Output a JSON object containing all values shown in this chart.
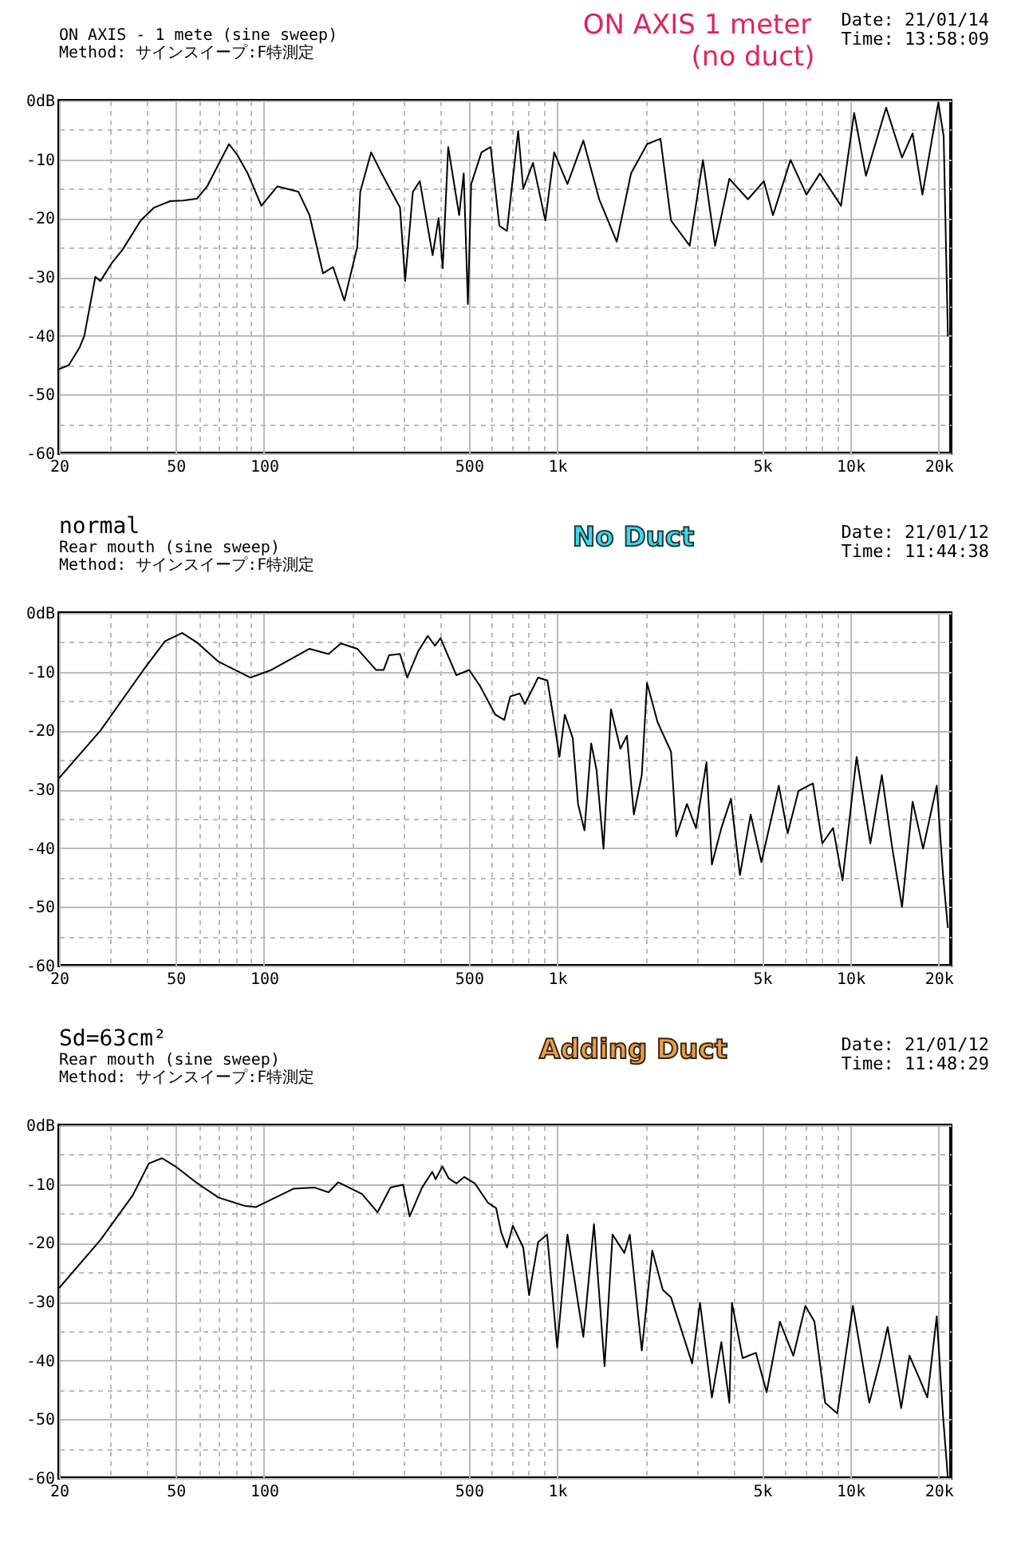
{
  "chart_data": [
    {
      "type": "line",
      "subtitle": "ON AXIS - 1 mete (sine sweep)\nMethod: サインスイープ:F特測定",
      "annotations": [
        "ON AXIS 1 meter\n(no duct)",
        "Date: 21/01/14",
        "Time: 13:58:09"
      ],
      "log": "x",
      "grid": true,
      "line_style": "solid",
      "xlim": [
        20,
        22000
      ],
      "ylim": [
        -60,
        0
      ],
      "xticks": [
        20,
        {
          "value": 30,
          "label": null
        },
        {
          "value": 40,
          "label": null
        },
        50,
        {
          "value": 60,
          "label": null
        },
        {
          "value": 70,
          "label": null
        },
        {
          "value": 80,
          "label": null
        },
        {
          "value": 90,
          "label": null
        },
        100,
        {
          "value": 200,
          "label": null
        },
        {
          "value": 300,
          "label": null
        },
        {
          "value": 400,
          "label": null
        },
        500,
        {
          "value": 600,
          "label": null
        },
        {
          "value": 700,
          "label": null
        },
        {
          "value": 800,
          "label": null
        },
        {
          "value": 900,
          "label": null
        },
        {
          "value": 1000,
          "label": "1k"
        },
        {
          "value": 2000,
          "label": null
        },
        {
          "value": 3000,
          "label": null
        },
        {
          "value": 4000,
          "label": null
        },
        {
          "value": 5000,
          "label": "5k"
        },
        {
          "value": 6000,
          "label": null
        },
        {
          "value": 7000,
          "label": null
        },
        {
          "value": 8000,
          "label": null
        },
        {
          "value": 9000,
          "label": null
        },
        {
          "value": 10000,
          "label": "10k"
        },
        {
          "value": 20000,
          "label": "20k"
        }
      ],
      "yticks": [
        {
          "value": 0,
          "label": "0dB"
        },
        {
          "value": -5,
          "label": null
        },
        -10,
        {
          "value": -15,
          "label": null
        },
        -20,
        {
          "value": -25,
          "label": null
        },
        -30,
        {
          "value": -35,
          "label": null
        },
        -40,
        {
          "value": -45,
          "label": null
        },
        -50,
        {
          "value": -55,
          "label": null
        },
        -60
      ],
      "series": [
        {
          "color": "#000000",
          "x": [
            20,
            21.6,
            23.5,
            24.4,
            26.6,
            27.7,
            30.3,
            32.9,
            38,
            42.2,
            47.9,
            53,
            59,
            64,
            76,
            81,
            88,
            98,
            111,
            131,
            143,
            159,
            172,
            188,
            208,
            213,
            232,
            252,
            291,
            303,
            322,
            340,
            376,
            394,
            407,
            425,
            463,
            480,
            496,
            509,
            552,
            593,
            635,
            674,
            736,
            766,
            827,
            911,
            977,
            1084,
            1228,
            1391,
            1596,
            1786,
            2027,
            2250,
            2445,
            2830,
            3141,
            3455,
            3865,
            4474,
            5070,
            5445,
            6250,
            7080,
            7870,
            9290,
            10300,
            11300,
            13240,
            15000,
            16300,
            17600,
            19950,
            20800,
            21500
          ],
          "values": [
            -45.7,
            -45,
            -42,
            -40,
            -30,
            -30.7,
            -27.6,
            -25.4,
            -20.4,
            -18.2,
            -17.1,
            -17,
            -16.7,
            -14.6,
            -7.4,
            -9.2,
            -12.4,
            -17.9,
            -14.6,
            -15.5,
            -19.5,
            -29.4,
            -28.3,
            -34,
            -24.9,
            -15.5,
            -8.8,
            -12.4,
            -18.2,
            -30.7,
            -15.5,
            -13.7,
            -26.3,
            -20,
            -28.5,
            -7.9,
            -19.5,
            -12.4,
            -34.6,
            -14.2,
            -8.8,
            -7.9,
            -21.3,
            -22.2,
            -5.2,
            -15,
            -10.6,
            -20.4,
            -8.8,
            -14.2,
            -6.8,
            -16.8,
            -24,
            -12.4,
            -7.4,
            -6.5,
            -20.4,
            -24.7,
            -10.1,
            -24.7,
            -13.3,
            -16.8,
            -13.7,
            -19.5,
            -10.1,
            -16,
            -12.4,
            -17.9,
            -2.1,
            -12.8,
            -1.2,
            -9.7,
            -5.6,
            -16,
            -0.3,
            -6.1,
            -40.1
          ]
        }
      ]
    },
    {
      "type": "line",
      "title": "normal",
      "subtitle": "Rear mouth (sine sweep)\nMethod: サインスイープ:F特測定",
      "annotations": [
        "No Duct",
        "Date: 21/01/12",
        "Time: 11:44:38"
      ],
      "log": "x",
      "grid": true,
      "line_style": "solid",
      "xlim": [
        20,
        22000
      ],
      "ylim": [
        -60,
        0
      ],
      "xticks": [
        20,
        {
          "value": 30,
          "label": null
        },
        {
          "value": 40,
          "label": null
        },
        50,
        {
          "value": 60,
          "label": null
        },
        {
          "value": 70,
          "label": null
        },
        {
          "value": 80,
          "label": null
        },
        {
          "value": 90,
          "label": null
        },
        100,
        {
          "value": 200,
          "label": null
        },
        {
          "value": 300,
          "label": null
        },
        {
          "value": 400,
          "label": null
        },
        500,
        {
          "value": 600,
          "label": null
        },
        {
          "value": 700,
          "label": null
        },
        {
          "value": 800,
          "label": null
        },
        {
          "value": 900,
          "label": null
        },
        {
          "value": 1000,
          "label": "1k"
        },
        {
          "value": 2000,
          "label": null
        },
        {
          "value": 3000,
          "label": null
        },
        {
          "value": 4000,
          "label": null
        },
        {
          "value": 5000,
          "label": "5k"
        },
        {
          "value": 6000,
          "label": null
        },
        {
          "value": 7000,
          "label": null
        },
        {
          "value": 8000,
          "label": null
        },
        {
          "value": 9000,
          "label": null
        },
        {
          "value": 10000,
          "label": "10k"
        },
        {
          "value": 20000,
          "label": "20k"
        }
      ],
      "yticks": [
        {
          "value": 0,
          "label": "0dB"
        },
        {
          "value": -5,
          "label": null
        },
        -10,
        {
          "value": -15,
          "label": null
        },
        -20,
        {
          "value": -25,
          "label": null
        },
        -30,
        {
          "value": -35,
          "label": null
        },
        -40,
        {
          "value": -45,
          "label": null
        },
        -50,
        {
          "value": -55,
          "label": null
        },
        -60
      ],
      "series": [
        {
          "color": "#000000",
          "x": [
            20,
            27.7,
            38.8,
            46,
            52.6,
            59,
            70,
            90,
            106,
            143,
            166,
            183,
            208,
            241,
            256,
            267,
            291,
            308,
            336,
            362,
            383,
            400,
            453,
            501,
            545,
            615,
            660,
            692,
            745,
            776,
            861,
            926,
            977,
            1018,
            1062,
            1130,
            1178,
            1239,
            1306,
            1362,
            1439,
            1525,
            1643,
            1729,
            1826,
            1943,
            2025,
            2200,
            2445,
            2548,
            2770,
            2973,
            3230,
            3370,
            3630,
            3915,
            4200,
            4570,
            4970,
            5700,
            6110,
            6650,
            7450,
            8020,
            8730,
            9400,
            10500,
            11700,
            12800,
            13900,
            15000,
            16300,
            17700,
            19700,
            20700,
            21500
          ],
          "values": [
            -28.1,
            -20,
            -9.7,
            -4.8,
            -3.4,
            -5,
            -8.3,
            -11,
            -9.7,
            -6.1,
            -7,
            -5.2,
            -6.1,
            -9.7,
            -9.7,
            -7.2,
            -7,
            -11,
            -6.5,
            -3.9,
            -5.6,
            -4.3,
            -10.6,
            -9.7,
            -12.4,
            -17.3,
            -18.2,
            -14.2,
            -13.7,
            -15.5,
            -11,
            -11.5,
            -18.6,
            -24.5,
            -17.3,
            -21.3,
            -32.5,
            -37,
            -22.2,
            -26.7,
            -40.1,
            -16.4,
            -23.1,
            -20.9,
            -34.3,
            -27.6,
            -11.9,
            -18.6,
            -23.6,
            -38,
            -32.5,
            -36.6,
            -25.4,
            -42.8,
            -36.6,
            -31.6,
            -44.6,
            -34.3,
            -42.4,
            -29.4,
            -37.5,
            -30.3,
            -29,
            -39.2,
            -36.6,
            -45.5,
            -24.5,
            -39.2,
            -27.6,
            -40.1,
            -50,
            -32.1,
            -40.1,
            -29.4,
            -44.6,
            -53.6
          ]
        }
      ]
    },
    {
      "type": "line",
      "title": "Sd=63cm²",
      "subtitle": "Rear mouth (sine sweep)\nMethod: サインスイープ:F特測定",
      "annotations": [
        "Adding Duct",
        "Date: 21/01/12",
        "Time: 11:48:29"
      ],
      "log": "x",
      "grid": true,
      "line_style": "solid",
      "xlim": [
        20,
        22000
      ],
      "ylim": [
        -60,
        0
      ],
      "xticks": [
        20,
        {
          "value": 30,
          "label": null
        },
        {
          "value": 40,
          "label": null
        },
        50,
        {
          "value": 60,
          "label": null
        },
        {
          "value": 70,
          "label": null
        },
        {
          "value": 80,
          "label": null
        },
        {
          "value": 90,
          "label": null
        },
        100,
        {
          "value": 200,
          "label": null
        },
        {
          "value": 300,
          "label": null
        },
        {
          "value": 400,
          "label": null
        },
        500,
        {
          "value": 600,
          "label": null
        },
        {
          "value": 700,
          "label": null
        },
        {
          "value": 800,
          "label": null
        },
        {
          "value": 900,
          "label": null
        },
        {
          "value": 1000,
          "label": "1k"
        },
        {
          "value": 2000,
          "label": null
        },
        {
          "value": 3000,
          "label": null
        },
        {
          "value": 4000,
          "label": null
        },
        {
          "value": 5000,
          "label": "5k"
        },
        {
          "value": 6000,
          "label": null
        },
        {
          "value": 7000,
          "label": null
        },
        {
          "value": 8000,
          "label": null
        },
        {
          "value": 9000,
          "label": null
        },
        {
          "value": 10000,
          "label": "10k"
        },
        {
          "value": 20000,
          "label": "20k"
        }
      ],
      "yticks": [
        {
          "value": 0,
          "label": "0dB"
        },
        {
          "value": -5,
          "label": null
        },
        -10,
        {
          "value": -15,
          "label": null
        },
        -20,
        {
          "value": -25,
          "label": null
        },
        -30,
        {
          "value": -35,
          "label": null
        },
        -40,
        {
          "value": -45,
          "label": null
        },
        -50,
        {
          "value": -55,
          "label": null
        },
        -60
      ],
      "series": [
        {
          "color": "#000000",
          "x": [
            20,
            27.7,
            35.7,
            40.5,
            44.9,
            49.9,
            59,
            70,
            86,
            94,
            126,
            149,
            166,
            179,
            216,
            244,
            270,
            298,
            314,
            346,
            375,
            385,
            406,
            426,
            453,
            482,
            524,
            581,
            619,
            644,
            674,
            706,
            766,
            802,
            861,
            924,
            1000,
            1084,
            1228,
            1335,
            1451,
            1545,
            1694,
            1768,
            1943,
            2110,
            2292,
            2445,
            2885,
            3070,
            3370,
            3630,
            3865,
            3945,
            4290,
            4760,
            5180,
            5750,
            6390,
            7020,
            7540,
            8200,
            9020,
            10200,
            11600,
            12700,
            13400,
            14900,
            15900,
            17100,
            18300,
            19700,
            20700,
            21500
          ],
          "values": [
            -27.7,
            -19.5,
            -11.9,
            -6.5,
            -5.6,
            -7,
            -9.8,
            -12.3,
            -13.7,
            -13.9,
            -10.8,
            -10.6,
            -11.4,
            -9.7,
            -11.7,
            -14.8,
            -10.6,
            -10.1,
            -15.5,
            -10.6,
            -7.9,
            -9.2,
            -7,
            -9,
            -9.9,
            -8.8,
            -9.9,
            -13.2,
            -14.1,
            -18.2,
            -20.8,
            -17.1,
            -20.8,
            -28.9,
            -19.9,
            -18.6,
            -37.8,
            -18.6,
            -36,
            -16.8,
            -41,
            -18.6,
            -21.7,
            -18.6,
            -38.3,
            -21.3,
            -28,
            -29.3,
            -40.5,
            -30.2,
            -46.3,
            -36.9,
            -47.2,
            -30.2,
            -39.6,
            -38.7,
            -45.4,
            -33.4,
            -39.2,
            -30.7,
            -33.4,
            -47.2,
            -49,
            -30.7,
            -47.2,
            -39.6,
            -34.3,
            -48.1,
            -39.2,
            -42.8,
            -46.3,
            -32.5,
            -49.5,
            -60
          ]
        }
      ]
    }
  ]
}
